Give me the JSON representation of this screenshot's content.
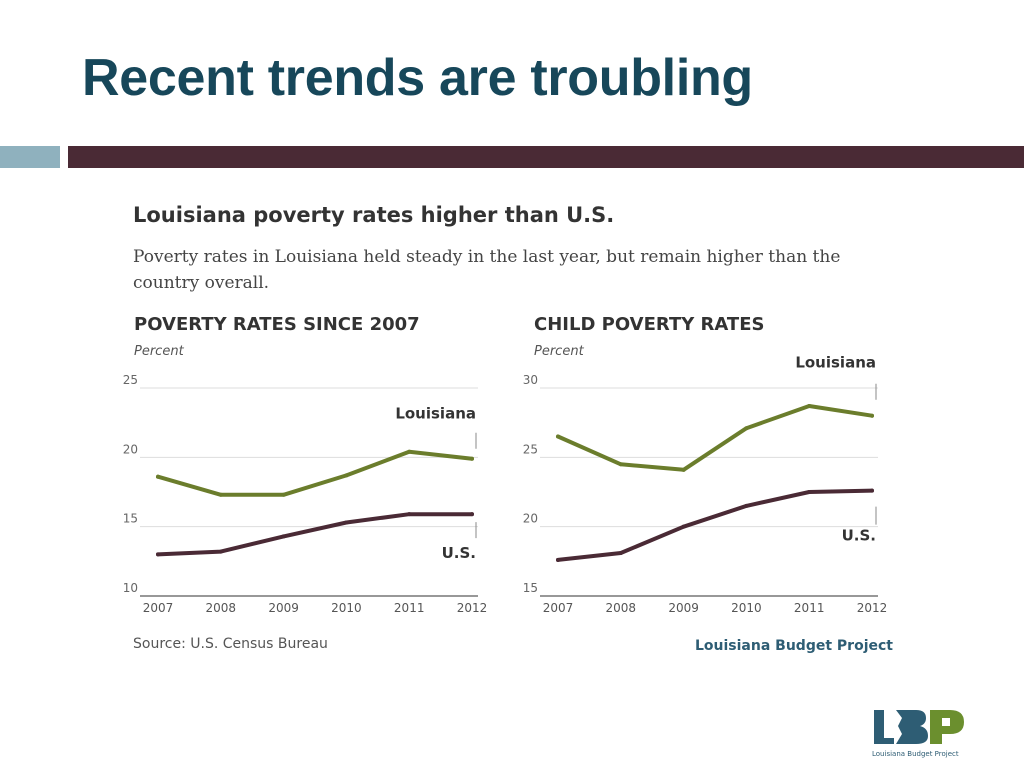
{
  "slide": {
    "title": "Recent trends are troubling"
  },
  "figure": {
    "heading": "Louisiana poverty rates higher than U.S.",
    "description": "Poverty rates in Louisiana held steady in the last year, but remain higher than the country overall.",
    "source": "Source: U.S. Census Bureau",
    "credit": "Louisiana Budget Project"
  },
  "logo": {
    "text": "LBP",
    "caption": "Louisiana Budget Project"
  },
  "colors": {
    "louisiana": "#6b7d2c",
    "us": "#4a2a35",
    "title": "#17475a",
    "accent_bar": "#8fb1be",
    "credit": "#2e5d74"
  },
  "chart_data": [
    {
      "type": "line",
      "title": "POVERTY RATES SINCE 2007",
      "ylabel": "Percent",
      "x": [
        "2007",
        "2008",
        "2009",
        "2010",
        "2011",
        "2012"
      ],
      "ylim": [
        10,
        25
      ],
      "yticks": [
        10,
        15,
        20,
        25
      ],
      "grid": true,
      "series": [
        {
          "name": "Louisiana",
          "values": [
            18.6,
            17.3,
            17.3,
            18.7,
            20.4,
            19.9
          ]
        },
        {
          "name": "U.S.",
          "values": [
            13.0,
            13.2,
            14.3,
            15.3,
            15.9,
            15.9
          ]
        }
      ]
    },
    {
      "type": "line",
      "title": "CHILD POVERTY RATES",
      "ylabel": "Percent",
      "x": [
        "2007",
        "2008",
        "2009",
        "2010",
        "2011",
        "2012"
      ],
      "ylim": [
        15,
        30
      ],
      "yticks": [
        15,
        20,
        25,
        30
      ],
      "grid": true,
      "series": [
        {
          "name": "Louisiana",
          "values": [
            26.5,
            24.5,
            24.1,
            27.1,
            28.7,
            28.0
          ]
        },
        {
          "name": "U.S.",
          "values": [
            17.6,
            18.1,
            20.0,
            21.5,
            22.5,
            22.6
          ]
        }
      ]
    }
  ]
}
